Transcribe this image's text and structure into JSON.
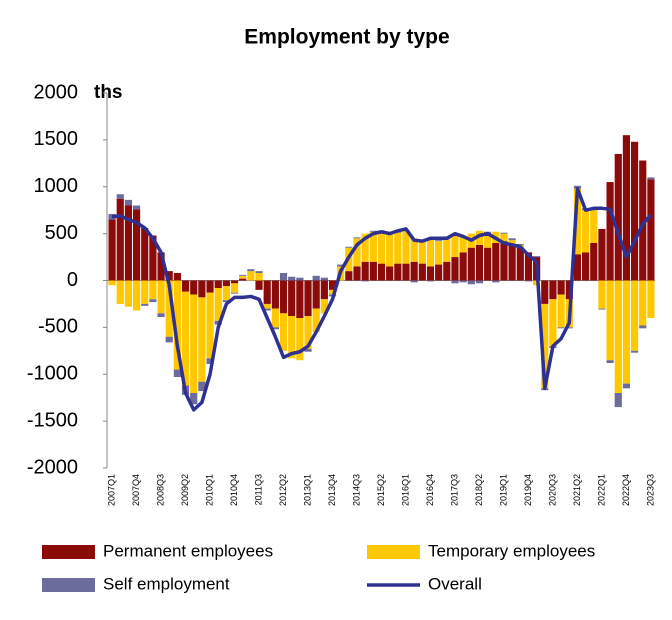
{
  "chart_data": {
    "type": "bar",
    "stacked": true,
    "title": "Employment by type",
    "y_label": "ths",
    "categories": [
      "2007Q1",
      null,
      null,
      "2007Q4",
      null,
      null,
      "2008Q3",
      null,
      null,
      "2009Q2",
      null,
      null,
      "2010Q1",
      null,
      null,
      "2010Q4",
      null,
      null,
      "2011Q3",
      null,
      null,
      "2012Q2",
      null,
      null,
      "2013Q1",
      null,
      null,
      "2013Q4",
      null,
      null,
      "2014Q3",
      null,
      null,
      "2015Q2",
      null,
      null,
      "2016Q1",
      null,
      null,
      "2016Q4",
      null,
      null,
      "2017Q3",
      null,
      null,
      "2018Q2",
      null,
      null,
      "2019Q1",
      null,
      null,
      "2019Q4",
      null,
      null,
      "2020Q3",
      null,
      null,
      "2021Q2",
      null,
      null,
      "2022Q1",
      null,
      null,
      "2022Q4",
      null,
      null,
      "2023Q3"
    ],
    "series": [
      {
        "name": "Permanent employees",
        "type": "bar",
        "color": "#8b0a0a",
        "values": [
          650,
          870,
          800,
          760,
          560,
          480,
          300,
          100,
          80,
          -120,
          -150,
          -180,
          -130,
          -80,
          -60,
          -30,
          20,
          0,
          -100,
          -250,
          -300,
          -350,
          -380,
          -400,
          -380,
          -300,
          -200,
          -100,
          0,
          100,
          150,
          200,
          200,
          180,
          150,
          180,
          180,
          200,
          180,
          150,
          170,
          200,
          250,
          300,
          350,
          380,
          350,
          400,
          420,
          380,
          350,
          300,
          250,
          -250,
          -200,
          -150,
          -200,
          280,
          300,
          400,
          550,
          1050,
          1350,
          1550,
          1480,
          1280,
          1080
        ]
      },
      {
        "name": "Temporary employees",
        "type": "bar",
        "color": "#ffc800",
        "values": [
          -50,
          -250,
          -280,
          -320,
          -250,
          -200,
          -350,
          -600,
          -950,
          -1000,
          -1050,
          -900,
          -700,
          -350,
          -150,
          -100,
          30,
          100,
          80,
          -50,
          -200,
          -400,
          -450,
          -450,
          -350,
          -250,
          -150,
          -50,
          150,
          250,
          300,
          300,
          320,
          320,
          350,
          330,
          350,
          250,
          230,
          300,
          250,
          250,
          230,
          180,
          150,
          150,
          150,
          120,
          80,
          50,
          30,
          0,
          -50,
          -900,
          -500,
          -350,
          -300,
          700,
          450,
          350,
          -300,
          -850,
          -1200,
          -1100,
          -750,
          -480,
          -400
        ]
      },
      {
        "name": "Self employment",
        "type": "bar",
        "color": "#6c6c9c",
        "values": [
          60,
          50,
          60,
          40,
          -20,
          -30,
          -40,
          -60,
          -80,
          -100,
          -120,
          -100,
          -60,
          -40,
          -20,
          -10,
          10,
          20,
          20,
          -20,
          -20,
          80,
          40,
          30,
          -30,
          50,
          30,
          -20,
          20,
          10,
          10,
          -10,
          10,
          20,
          20,
          10,
          10,
          -20,
          10,
          -10,
          10,
          20,
          -30,
          -20,
          -40,
          -30,
          20,
          -20,
          10,
          20,
          10,
          -10,
          10,
          -20,
          -20,
          -10,
          -10,
          30,
          20,
          10,
          -10,
          -30,
          -150,
          -50,
          -20,
          -30,
          20
        ]
      },
      {
        "name": "Overall",
        "type": "line",
        "color": "#2e3192",
        "values": [
          680,
          690,
          650,
          620,
          560,
          450,
          300,
          -50,
          -700,
          -1200,
          -1380,
          -1300,
          -1000,
          -500,
          -250,
          -180,
          -180,
          -170,
          -200,
          -400,
          -600,
          -820,
          -780,
          -760,
          -700,
          -550,
          -380,
          -200,
          100,
          250,
          380,
          450,
          500,
          520,
          500,
          530,
          550,
          430,
          420,
          450,
          450,
          450,
          500,
          470,
          430,
          480,
          500,
          450,
          400,
          380,
          360,
          270,
          200,
          -1150,
          -700,
          -620,
          -450,
          980,
          750,
          770,
          770,
          760,
          500,
          250,
          420,
          600,
          700
        ]
      }
    ],
    "ylim": [
      -2000,
      2000
    ],
    "yticks": [
      -2000,
      -1500,
      -1000,
      -500,
      0,
      500,
      1000,
      1500,
      2000
    ],
    "legend": "bottom"
  }
}
